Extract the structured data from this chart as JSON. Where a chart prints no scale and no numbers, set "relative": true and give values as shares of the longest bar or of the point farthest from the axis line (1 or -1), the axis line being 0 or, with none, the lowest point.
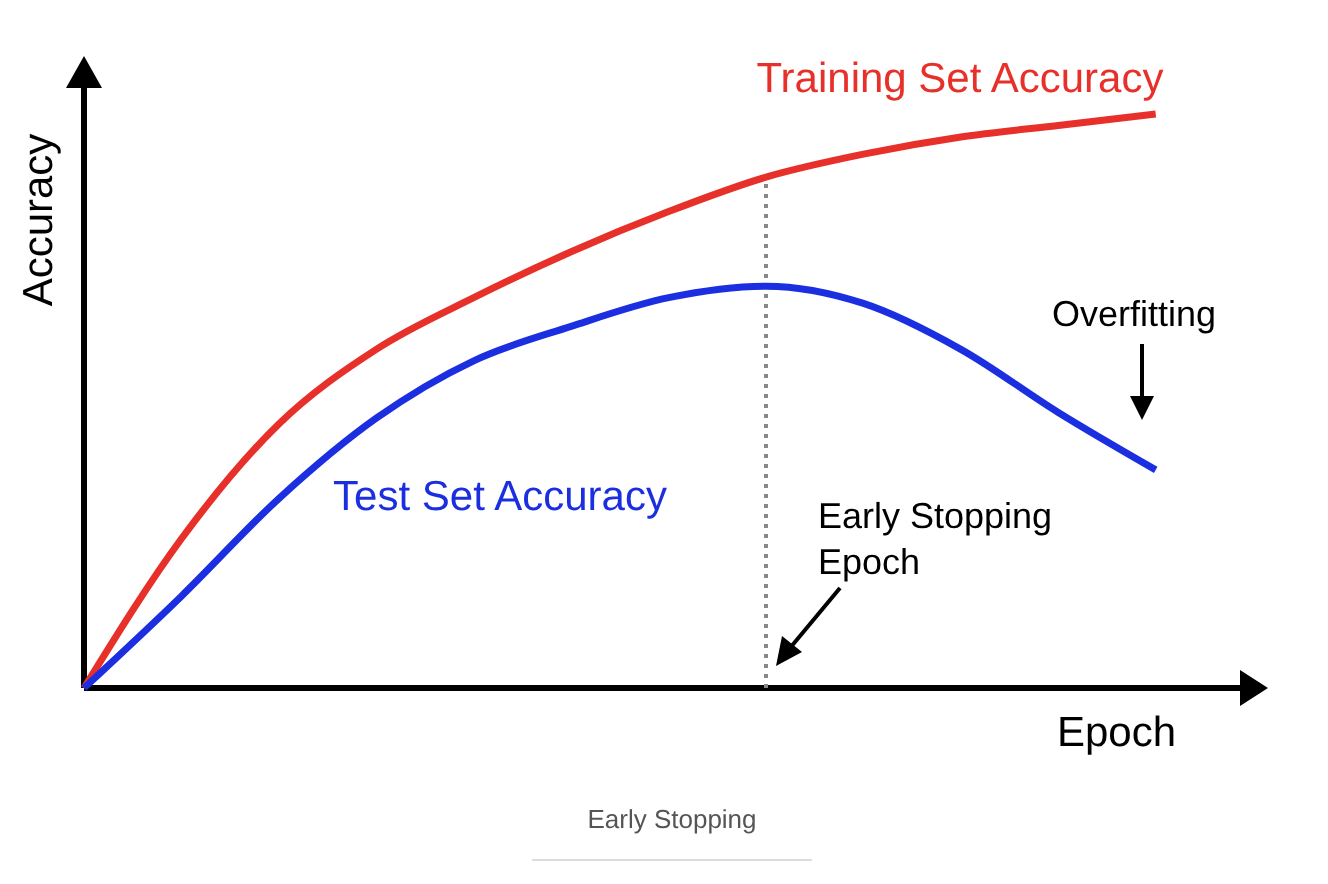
{
  "chart_data": {
    "type": "line",
    "relative": true,
    "xlabel": "Epoch",
    "ylabel": "Accuracy",
    "categories": [
      null,
      null,
      null,
      null,
      null,
      null,
      null,
      null,
      null,
      null,
      null,
      null
    ],
    "series": [
      {
        "name": "Training Set Accuracy",
        "color": "#e8302a",
        "values": [
          0,
          0.26,
          0.46,
          0.59,
          0.68,
          0.76,
          0.83,
          0.89,
          0.93,
          0.96,
          0.98,
          1
        ]
      },
      {
        "name": "Test Set Accuracy",
        "color": "#1b2fe0",
        "values": [
          0,
          0.16,
          0.33,
          0.47,
          0.57,
          0.63,
          0.68,
          0.7,
          0.67,
          0.59,
          0.48,
          0.38
        ]
      }
    ],
    "annotations": [
      "Overfitting",
      "Early Stopping",
      "Early Stopping Epoch"
    ],
    "marker": "none",
    "line_style": "solid"
  }
}
